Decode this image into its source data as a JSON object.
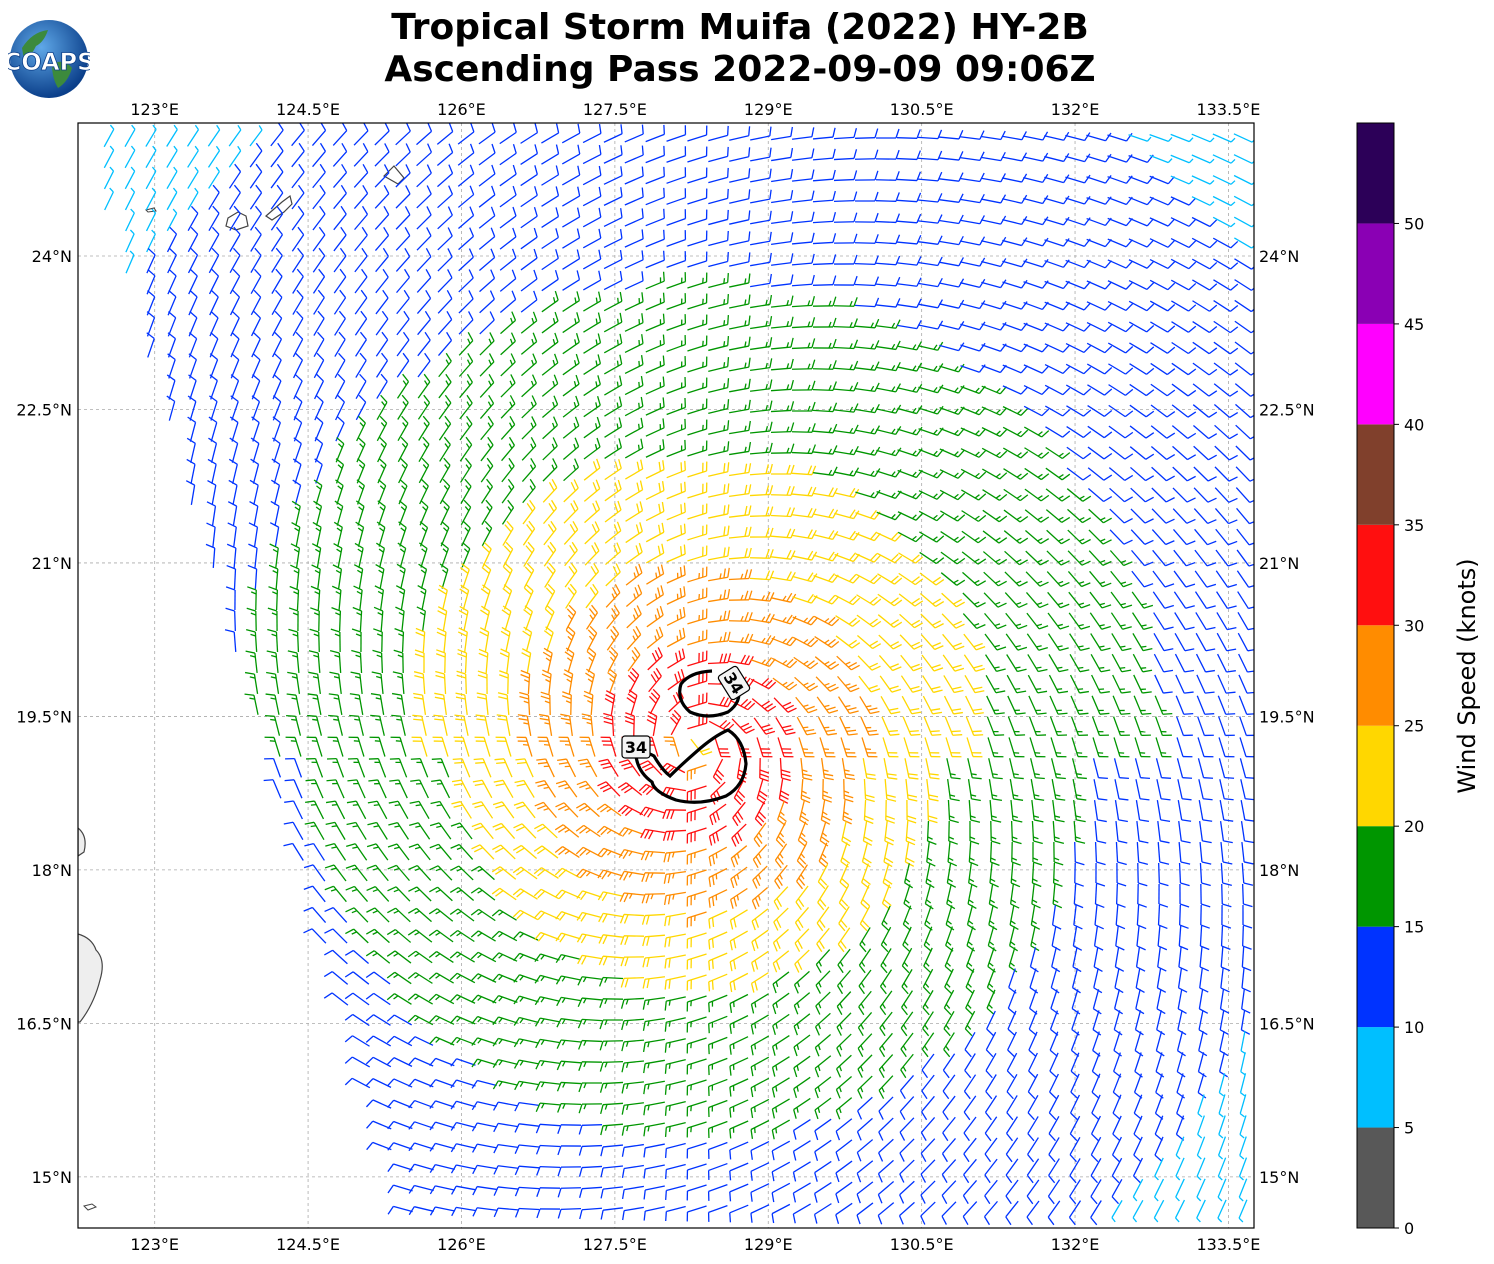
{
  "logo": {
    "text": "COAPS"
  },
  "title": {
    "line1": "Tropical Storm Muifa (2022) HY-2B",
    "line2": "Ascending Pass 2022-09-09 09:06Z"
  },
  "chart_data": {
    "type": "wind-barb-map",
    "lon_ticks": [
      "123°E",
      "124.5°E",
      "126°E",
      "127.5°E",
      "129°E",
      "130.5°E",
      "132°E",
      "133.5°E"
    ],
    "lon_values": [
      123,
      124.5,
      126,
      127.5,
      129,
      130.5,
      132,
      133.5
    ],
    "lat_ticks": [
      "24°N",
      "22.5°N",
      "21°N",
      "19.5°N",
      "18°N",
      "16.5°N",
      "15°N"
    ],
    "lat_values": [
      24,
      22.5,
      21,
      19.5,
      18,
      16.5,
      15
    ],
    "xlim": [
      122.25,
      133.75
    ],
    "ylim": [
      14.5,
      25.3
    ],
    "grid": true,
    "storm_center": {
      "lon": 128.3,
      "lat": 19.2
    },
    "contour_label": "34",
    "colorbar": {
      "label": "Wind Speed (knots)",
      "ticks": [
        "0",
        "5",
        "10",
        "15",
        "20",
        "25",
        "30",
        "35",
        "40",
        "45",
        "50"
      ],
      "bins": [
        {
          "min": 0,
          "max": 5,
          "color": "#585858"
        },
        {
          "min": 5,
          "max": 10,
          "color": "#00bfff"
        },
        {
          "min": 10,
          "max": 15,
          "color": "#0033ff"
        },
        {
          "min": 15,
          "max": 20,
          "color": "#009600"
        },
        {
          "min": 20,
          "max": 25,
          "color": "#ffd700"
        },
        {
          "min": 25,
          "max": 30,
          "color": "#ff8c00"
        },
        {
          "min": 30,
          "max": 35,
          "color": "#ff0f0f"
        },
        {
          "min": 35,
          "max": 40,
          "color": "#80402c"
        },
        {
          "min": 40,
          "max": 45,
          "color": "#ff00ff"
        },
        {
          "min": 45,
          "max": 50,
          "color": "#8a00b4"
        },
        {
          "min": 50,
          "max": 55,
          "color": "#2c0058"
        }
      ]
    }
  }
}
